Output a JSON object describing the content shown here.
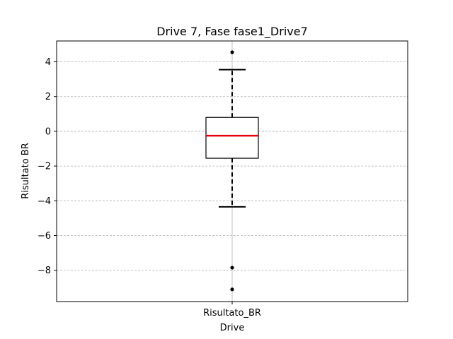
{
  "chart_data": {
    "type": "box",
    "title": "Drive 7, Fase fase1_Drive7",
    "xlabel": "Drive",
    "ylabel": "Risultato BR",
    "categories": [
      "Risultato_BR"
    ],
    "ylim": [
      -9.8,
      5.2
    ],
    "yticks": [
      -8,
      -6,
      -4,
      -2,
      0,
      2,
      4
    ],
    "grid": "y-dashed",
    "boxes": [
      {
        "label": "Risultato_BR",
        "q1": -1.55,
        "median": -0.25,
        "q3": 0.8,
        "whisker_low": -4.35,
        "whisker_high": 3.55,
        "outliers": [
          4.55,
          -7.85,
          -9.1
        ]
      }
    ],
    "colors": {
      "median": "#e8000b",
      "grid": "#b0b0b0",
      "box": "#000000"
    }
  }
}
